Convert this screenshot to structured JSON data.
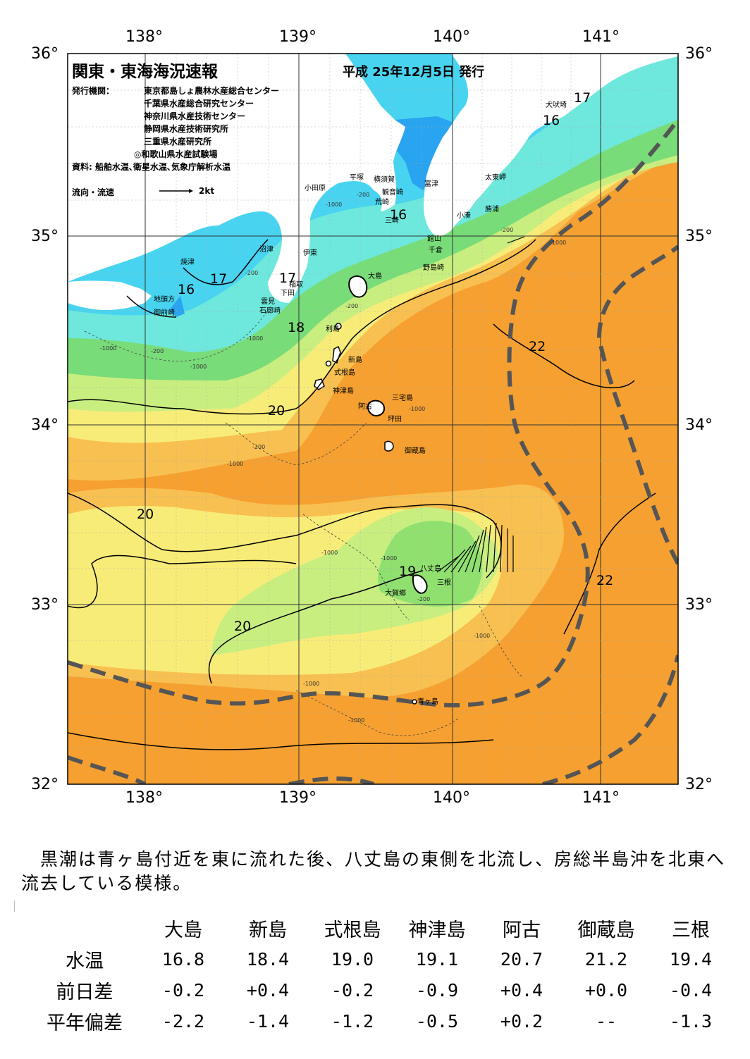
{
  "header": {
    "title": "関東・東海海況速報",
    "date": "平成 25年12月5日 発行",
    "issuer_label": "発行機関：",
    "issuers": [
      "東京都島しょ農林水産総合センター",
      "千葉県水産総合研究センター",
      "神奈川県水産技術センター",
      "静岡県水産技術研究所",
      "三重県水産研究所",
      "◎和歌山県水産試験場"
    ],
    "sources": "資料: 船舶水温､衛星水温､気象庁解析水温",
    "flow_legend": "流向・流速",
    "flow_scale": "2kt"
  },
  "axes": {
    "lon_labels": [
      "138°",
      "139°",
      "140°",
      "141°"
    ],
    "lat_labels": [
      "36°",
      "35°",
      "34°",
      "33°",
      "32°"
    ]
  },
  "places": [
    "犬吠埼",
    "太東岬",
    "勝浦",
    "小湊",
    "富津",
    "横須賀",
    "平塚",
    "観音崎",
    "荒崎",
    "三崎",
    "館山",
    "千倉",
    "野島崎",
    "小田原",
    "沼津",
    "伊東",
    "稲取",
    "下田",
    "雲見",
    "石廊崎",
    "焼津",
    "地頭方",
    "御前崎",
    "大島",
    "利島",
    "新島",
    "式根島",
    "神津島",
    "三宅島",
    "阿古",
    "坪田",
    "御蔵島",
    "八丈島",
    "三根",
    "大賀郷",
    "青ヶ島"
  ],
  "isotherm_labels": [
    "17",
    "16",
    "16",
    "17",
    "17",
    "16",
    "18",
    "20",
    "20",
    "20",
    "22",
    "22",
    "19"
  ],
  "depth_labels": [
    "-200",
    "-1000"
  ],
  "note": "　黒潮は青ヶ島付近を東に流れた後、八丈島の東側を北流し、房総半島沖を北東へ流去している模様。",
  "table": {
    "columns": [
      "大島",
      "新島",
      "式根島",
      "神津島",
      "阿古",
      "御蔵島",
      "三根"
    ],
    "rows": [
      {
        "label": "水温",
        "values": [
          "16.8",
          "18.4",
          "19.0",
          "19.1",
          "20.7",
          "21.2",
          "19.4"
        ]
      },
      {
        "label": "前日差",
        "values": [
          "-0.2",
          "+0.4",
          "-0.2",
          "-0.9",
          "+0.4",
          "+0.0",
          "-0.4"
        ]
      },
      {
        "label": "平年偏差",
        "values": [
          "-2.2",
          "-1.4",
          "-1.2",
          "-0.5",
          "+0.2",
          "--",
          "-1.3"
        ]
      }
    ]
  },
  "colors": {
    "warm": "#f5a030",
    "mid_warm": "#f8c050",
    "yellow": "#f8ec78",
    "light_green": "#c8ee80",
    "green": "#78dc78",
    "cyan": "#6ee8dc",
    "aqua": "#48d4f0",
    "blue": "#28a4f0",
    "kuroshio_axis": "#555555"
  }
}
